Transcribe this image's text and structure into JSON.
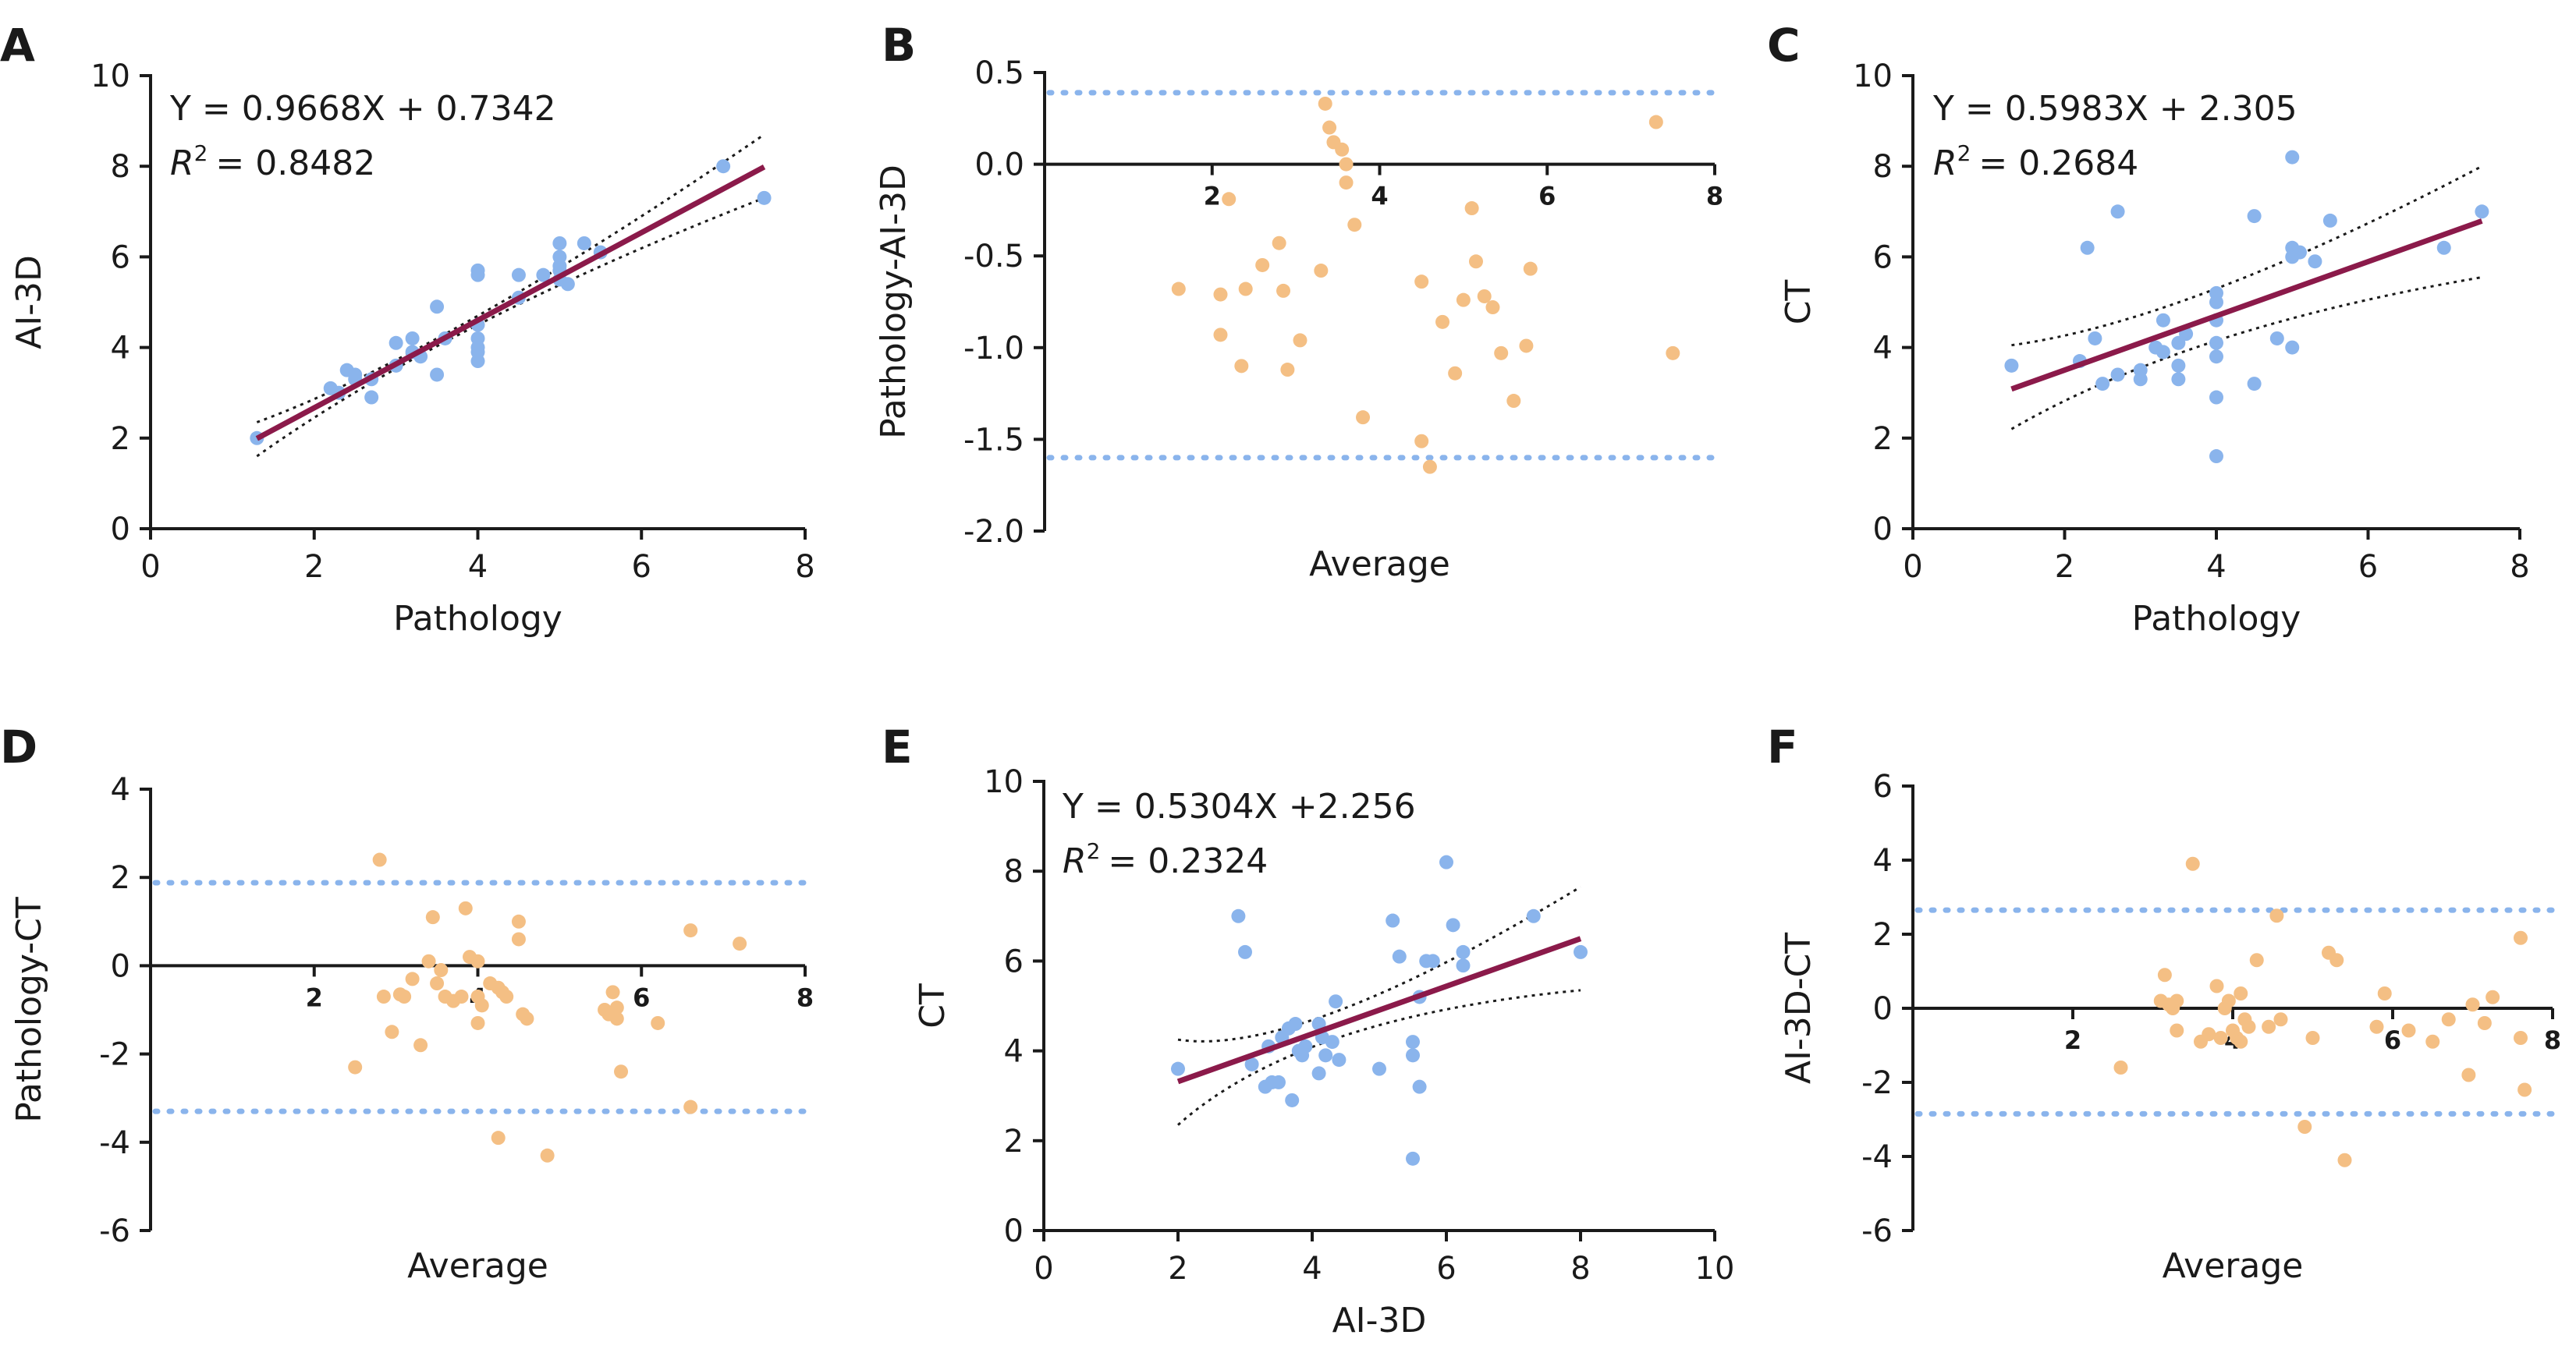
{
  "figure": {
    "colors": {
      "scatter_point": "#8ab4ec",
      "ba_point": "#f4bf84",
      "regression": "#8b1a4a",
      "limits": "#8ab4ec",
      "axis": "#1a1a1a"
    }
  },
  "chart_data": [
    {
      "id": "A",
      "type": "scatter",
      "panel_letter": "A",
      "xlabel": "Pathology",
      "ylabel": "AI-3D",
      "xlim": [
        0,
        8
      ],
      "ylim": [
        0,
        10
      ],
      "xticks": [
        0,
        2,
        4,
        6,
        8
      ],
      "yticks": [
        0,
        2,
        4,
        6,
        8,
        10
      ],
      "equation": "Y = 0.9668X + 0.7342",
      "r2_value": "= 0.8482",
      "regression": {
        "slope": 0.9668,
        "intercept": 0.7342,
        "x_range": [
          1.3,
          7.5
        ]
      },
      "confidence_band": {
        "lower": [
          [
            1.3,
            1.6
          ],
          [
            4.0,
            4.5
          ],
          [
            7.5,
            7.3
          ]
        ],
        "upper": [
          [
            1.3,
            2.35
          ],
          [
            4.0,
            4.7
          ],
          [
            7.5,
            8.7
          ]
        ]
      },
      "points": [
        [
          1.3,
          2.0
        ],
        [
          2.2,
          3.1
        ],
        [
          2.3,
          3.0
        ],
        [
          2.4,
          3.5
        ],
        [
          2.5,
          3.4
        ],
        [
          2.5,
          3.3
        ],
        [
          2.7,
          2.9
        ],
        [
          2.7,
          3.3
        ],
        [
          3.0,
          4.1
        ],
        [
          3.0,
          3.6
        ],
        [
          3.2,
          4.2
        ],
        [
          3.2,
          3.9
        ],
        [
          3.3,
          3.8
        ],
        [
          3.5,
          4.9
        ],
        [
          3.5,
          3.4
        ],
        [
          3.6,
          4.2
        ],
        [
          4.0,
          5.7
        ],
        [
          4.0,
          5.6
        ],
        [
          4.0,
          4.5
        ],
        [
          4.0,
          4.2
        ],
        [
          4.0,
          4.0
        ],
        [
          4.0,
          3.9
        ],
        [
          4.0,
          3.7
        ],
        [
          4.5,
          5.6
        ],
        [
          4.5,
          5.1
        ],
        [
          4.8,
          5.6
        ],
        [
          5.0,
          6.3
        ],
        [
          5.0,
          6.0
        ],
        [
          5.0,
          5.8
        ],
        [
          5.0,
          5.7
        ],
        [
          5.0,
          5.5
        ],
        [
          5.1,
          5.4
        ],
        [
          5.3,
          6.3
        ],
        [
          5.5,
          6.1
        ],
        [
          7.0,
          8.0
        ],
        [
          7.5,
          7.3
        ]
      ]
    },
    {
      "id": "B",
      "type": "scatter",
      "panel_letter": "B",
      "xlabel": "Average",
      "ylabel": "Pathology-AI-3D",
      "xlim": [
        0,
        8
      ],
      "ylim": [
        -2.0,
        0.5
      ],
      "xticks": [
        2,
        4,
        6,
        8
      ],
      "yticks": [
        -2.0,
        -1.5,
        -1.0,
        -0.5,
        0.0,
        0.5
      ],
      "ytick_labels": [
        "-2.0",
        "-1.5",
        "-1.0",
        "-0.5",
        "0.0",
        "0.5"
      ],
      "limits_of_agreement": [
        0.39,
        -1.6
      ],
      "points": [
        [
          1.6,
          -0.68
        ],
        [
          2.1,
          -0.71
        ],
        [
          2.1,
          -0.93
        ],
        [
          2.2,
          -0.19
        ],
        [
          2.35,
          -1.1
        ],
        [
          2.4,
          -0.68
        ],
        [
          2.6,
          -0.55
        ],
        [
          2.8,
          -0.43
        ],
        [
          2.85,
          -0.69
        ],
        [
          2.9,
          -1.12
        ],
        [
          3.05,
          -0.96
        ],
        [
          3.3,
          -0.58
        ],
        [
          3.35,
          0.33
        ],
        [
          3.4,
          0.2
        ],
        [
          3.45,
          0.12
        ],
        [
          3.55,
          0.08
        ],
        [
          3.6,
          0.0
        ],
        [
          3.6,
          -0.1
        ],
        [
          3.7,
          -0.33
        ],
        [
          3.8,
          -1.38
        ],
        [
          4.5,
          -1.51
        ],
        [
          4.5,
          -0.64
        ],
        [
          4.6,
          -1.65
        ],
        [
          4.75,
          -0.86
        ],
        [
          4.9,
          -1.14
        ],
        [
          5.0,
          -0.74
        ],
        [
          5.1,
          -0.24
        ],
        [
          5.15,
          -0.53
        ],
        [
          5.25,
          -0.72
        ],
        [
          5.35,
          -0.78
        ],
        [
          5.45,
          -1.03
        ],
        [
          5.6,
          -1.29
        ],
        [
          5.75,
          -0.99
        ],
        [
          5.8,
          -0.57
        ],
        [
          7.3,
          0.23
        ],
        [
          7.5,
          -1.03
        ]
      ]
    },
    {
      "id": "C",
      "type": "scatter",
      "panel_letter": "C",
      "xlabel": "Pathology",
      "ylabel": "CT",
      "xlim": [
        0,
        8
      ],
      "ylim": [
        0,
        10
      ],
      "xticks": [
        0,
        2,
        4,
        6,
        8
      ],
      "yticks": [
        0,
        2,
        4,
        6,
        8,
        10
      ],
      "equation": "Y = 0.5983X + 2.305",
      "r2_value": "= 0.2684",
      "regression": {
        "slope": 0.5983,
        "intercept": 2.305,
        "x_range": [
          1.3,
          7.5
        ]
      },
      "confidence_band": {
        "lower": [
          [
            1.3,
            2.2
          ],
          [
            4.0,
            4.15
          ],
          [
            7.5,
            5.55
          ]
        ],
        "upper": [
          [
            1.3,
            4.05
          ],
          [
            4.0,
            5.3
          ],
          [
            7.5,
            8.0
          ]
        ]
      },
      "points": [
        [
          1.3,
          3.6
        ],
        [
          2.2,
          3.7
        ],
        [
          2.3,
          6.2
        ],
        [
          2.4,
          4.2
        ],
        [
          2.5,
          3.2
        ],
        [
          2.7,
          7.0
        ],
        [
          2.7,
          3.4
        ],
        [
          3.0,
          3.5
        ],
        [
          3.0,
          3.3
        ],
        [
          3.2,
          4.0
        ],
        [
          3.3,
          3.9
        ],
        [
          3.3,
          4.6
        ],
        [
          3.5,
          4.1
        ],
        [
          3.5,
          3.6
        ],
        [
          3.5,
          3.3
        ],
        [
          3.6,
          4.3
        ],
        [
          4.0,
          5.2
        ],
        [
          4.0,
          5.0
        ],
        [
          4.0,
          4.6
        ],
        [
          4.0,
          4.1
        ],
        [
          4.0,
          3.8
        ],
        [
          4.0,
          2.9
        ],
        [
          4.0,
          1.6
        ],
        [
          4.5,
          6.9
        ],
        [
          4.5,
          3.2
        ],
        [
          4.8,
          4.2
        ],
        [
          5.0,
          8.2
        ],
        [
          5.0,
          6.2
        ],
        [
          5.0,
          6.0
        ],
        [
          5.0,
          4.0
        ],
        [
          5.1,
          6.1
        ],
        [
          5.3,
          5.9
        ],
        [
          5.5,
          6.8
        ],
        [
          7.0,
          6.2
        ],
        [
          7.5,
          7.0
        ]
      ]
    },
    {
      "id": "D",
      "type": "scatter",
      "panel_letter": "D",
      "xlabel": "Average",
      "ylabel": "Pathology-CT",
      "xlim": [
        0,
        8
      ],
      "ylim": [
        -6,
        4
      ],
      "xticks": [
        2,
        4,
        6,
        8
      ],
      "yticks": [
        -6,
        -4,
        -2,
        0,
        2,
        4
      ],
      "limits_of_agreement": [
        1.88,
        -3.3
      ],
      "points": [
        [
          2.5,
          -2.3
        ],
        [
          2.8,
          2.4
        ],
        [
          2.85,
          -0.7
        ],
        [
          2.95,
          -1.5
        ],
        [
          3.05,
          -0.65
        ],
        [
          3.1,
          -0.7
        ],
        [
          3.2,
          -0.3
        ],
        [
          3.3,
          -1.8
        ],
        [
          3.4,
          0.1
        ],
        [
          3.45,
          1.1
        ],
        [
          3.5,
          -0.4
        ],
        [
          3.55,
          -0.1
        ],
        [
          3.6,
          -0.7
        ],
        [
          3.7,
          -0.8
        ],
        [
          3.8,
          -0.7
        ],
        [
          3.85,
          1.3
        ],
        [
          3.9,
          0.2
        ],
        [
          4.0,
          0.1
        ],
        [
          4.0,
          -0.7
        ],
        [
          4.0,
          -1.3
        ],
        [
          4.05,
          -0.9
        ],
        [
          4.15,
          -0.4
        ],
        [
          4.25,
          -3.9
        ],
        [
          4.25,
          -0.5
        ],
        [
          4.3,
          -0.6
        ],
        [
          4.35,
          -0.7
        ],
        [
          4.5,
          1.0
        ],
        [
          4.5,
          0.6
        ],
        [
          4.55,
          -1.1
        ],
        [
          4.6,
          -1.2
        ],
        [
          4.85,
          -4.3
        ],
        [
          5.55,
          -1.0
        ],
        [
          5.6,
          -1.1
        ],
        [
          5.65,
          -0.6
        ],
        [
          5.7,
          -0.95
        ],
        [
          5.75,
          -2.4
        ],
        [
          5.7,
          -1.2
        ],
        [
          6.2,
          -1.3
        ],
        [
          6.6,
          0.8
        ],
        [
          6.6,
          -3.2
        ],
        [
          7.2,
          0.5
        ]
      ]
    },
    {
      "id": "E",
      "type": "scatter",
      "panel_letter": "E",
      "xlabel": "AI-3D",
      "ylabel": "CT",
      "xlim": [
        0,
        10
      ],
      "ylim": [
        0,
        10
      ],
      "xticks": [
        0,
        2,
        4,
        6,
        8,
        10
      ],
      "yticks": [
        0,
        2,
        4,
        6,
        8,
        10
      ],
      "equation": "Y = 0.5304X +2.256",
      "r2_value": "= 0.2324",
      "regression": {
        "slope": 0.5304,
        "intercept": 2.256,
        "x_range": [
          2.0,
          8.0
        ]
      },
      "confidence_band": {
        "lower": [
          [
            2.0,
            2.35
          ],
          [
            4.4,
            4.3
          ],
          [
            8.0,
            5.35
          ]
        ],
        "upper": [
          [
            2.0,
            4.25
          ],
          [
            4.4,
            4.9
          ],
          [
            8.0,
            7.65
          ]
        ]
      },
      "points": [
        [
          2.0,
          3.6
        ],
        [
          2.9,
          7.0
        ],
        [
          3.0,
          6.2
        ],
        [
          3.1,
          3.7
        ],
        [
          3.3,
          3.2
        ],
        [
          3.35,
          4.1
        ],
        [
          3.4,
          3.3
        ],
        [
          3.5,
          3.3
        ],
        [
          3.55,
          4.3
        ],
        [
          3.65,
          4.5
        ],
        [
          3.7,
          2.9
        ],
        [
          3.75,
          4.6
        ],
        [
          3.8,
          4.0
        ],
        [
          3.85,
          3.9
        ],
        [
          3.9,
          4.1
        ],
        [
          4.1,
          4.6
        ],
        [
          4.1,
          3.5
        ],
        [
          4.15,
          4.3
        ],
        [
          4.2,
          3.9
        ],
        [
          4.3,
          4.2
        ],
        [
          4.35,
          5.1
        ],
        [
          4.4,
          3.8
        ],
        [
          5.0,
          3.6
        ],
        [
          5.2,
          6.9
        ],
        [
          5.3,
          6.1
        ],
        [
          5.5,
          4.2
        ],
        [
          5.5,
          3.9
        ],
        [
          5.6,
          5.2
        ],
        [
          5.5,
          1.6
        ],
        [
          5.6,
          3.2
        ],
        [
          5.7,
          6.0
        ],
        [
          5.8,
          6.0
        ],
        [
          6.0,
          8.2
        ],
        [
          6.1,
          6.8
        ],
        [
          6.25,
          5.9
        ],
        [
          6.25,
          6.2
        ],
        [
          7.3,
          7.0
        ],
        [
          8.0,
          6.2
        ]
      ]
    },
    {
      "id": "F",
      "type": "scatter",
      "panel_letter": "F",
      "xlabel": "Average",
      "ylabel": "AI-3D-CT",
      "xlim": [
        0,
        8
      ],
      "ylim": [
        -6,
        6
      ],
      "xticks": [
        2,
        4,
        6,
        8
      ],
      "yticks": [
        -6,
        -4,
        -2,
        0,
        2,
        4,
        6
      ],
      "limits_of_agreement": [
        2.65,
        -2.85
      ],
      "points": [
        [
          2.6,
          -1.6
        ],
        [
          3.1,
          0.2
        ],
        [
          3.15,
          0.9
        ],
        [
          3.2,
          0.1
        ],
        [
          3.25,
          0.0
        ],
        [
          3.3,
          0.2
        ],
        [
          3.3,
          -0.6
        ],
        [
          3.5,
          3.9
        ],
        [
          3.6,
          -0.9
        ],
        [
          3.7,
          -0.7
        ],
        [
          3.8,
          0.6
        ],
        [
          3.85,
          -0.8
        ],
        [
          3.9,
          0.0
        ],
        [
          3.95,
          0.2
        ],
        [
          4.0,
          -0.6
        ],
        [
          4.05,
          -0.8
        ],
        [
          4.1,
          0.4
        ],
        [
          4.1,
          -0.9
        ],
        [
          4.15,
          -0.3
        ],
        [
          4.2,
          -0.5
        ],
        [
          4.3,
          1.3
        ],
        [
          4.45,
          -0.5
        ],
        [
          4.55,
          2.5
        ],
        [
          4.6,
          -0.3
        ],
        [
          4.9,
          -3.2
        ],
        [
          5.0,
          -0.8
        ],
        [
          5.2,
          1.5
        ],
        [
          5.3,
          1.3
        ],
        [
          5.4,
          -4.1
        ],
        [
          5.8,
          -0.5
        ],
        [
          5.9,
          0.4
        ],
        [
          6.2,
          -0.6
        ],
        [
          6.5,
          -0.9
        ],
        [
          6.7,
          -0.3
        ],
        [
          6.95,
          -1.8
        ],
        [
          7.0,
          0.1
        ],
        [
          7.15,
          -0.4
        ],
        [
          7.25,
          0.3
        ],
        [
          7.6,
          -0.8
        ],
        [
          7.6,
          1.9
        ],
        [
          7.65,
          -2.2
        ]
      ]
    }
  ]
}
